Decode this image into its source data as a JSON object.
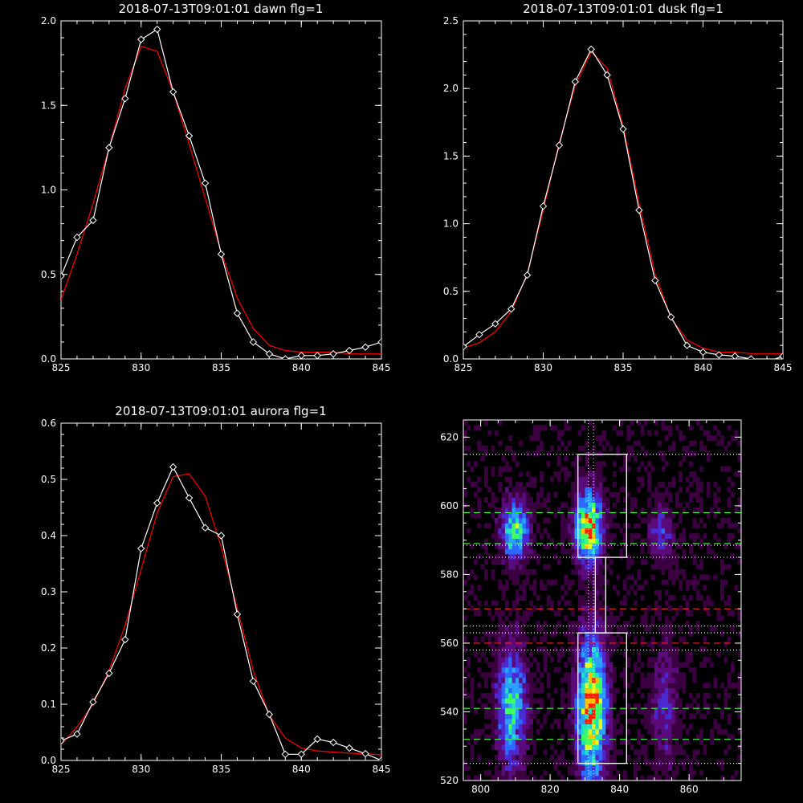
{
  "chart_data": [
    {
      "type": "line",
      "title": "2018-07-13T09:01:01 dawn flg=1",
      "xlim": [
        825,
        845
      ],
      "ylim": [
        0,
        2.0
      ],
      "xticks": [
        "825",
        "830",
        "835",
        "840",
        "845"
      ],
      "yticks": [
        "0.0",
        "0.5",
        "1.0",
        "1.5",
        "2.0"
      ],
      "series": [
        {
          "color": "#ffffff",
          "marker": "diamond",
          "x": [
            825,
            826,
            827,
            828,
            829,
            830,
            831,
            832,
            833,
            834,
            835,
            836,
            837,
            838,
            839,
            840,
            841,
            842,
            843,
            844,
            845
          ],
          "y": [
            0.49,
            0.72,
            0.82,
            1.25,
            1.54,
            1.89,
            1.95,
            1.58,
            1.32,
            1.04,
            0.62,
            0.27,
            0.1,
            0.03,
            0.0,
            0.02,
            0.02,
            0.03,
            0.05,
            0.07,
            0.1
          ]
        },
        {
          "color": "#ff0000",
          "marker": "none",
          "x": [
            825,
            826,
            827,
            828,
            829,
            830,
            831,
            832,
            833,
            834,
            835,
            836,
            837,
            838,
            839,
            840,
            841,
            842,
            843,
            844,
            845
          ],
          "y": [
            0.35,
            0.62,
            0.92,
            1.25,
            1.6,
            1.85,
            1.82,
            1.58,
            1.27,
            0.95,
            0.63,
            0.36,
            0.18,
            0.08,
            0.05,
            0.04,
            0.04,
            0.04,
            0.03,
            0.03,
            0.03
          ]
        }
      ]
    },
    {
      "type": "line",
      "title": "2018-07-13T09:01:01 dusk flg=1",
      "xlim": [
        825,
        845
      ],
      "ylim": [
        0,
        2.5
      ],
      "xticks": [
        "825",
        "830",
        "835",
        "840",
        "845"
      ],
      "yticks": [
        "0.0",
        "0.5",
        "1.0",
        "1.5",
        "2.0",
        "2.5"
      ],
      "series": [
        {
          "color": "#ffffff",
          "marker": "diamond",
          "x": [
            825,
            826,
            827,
            828,
            829,
            830,
            831,
            832,
            833,
            834,
            835,
            836,
            837,
            838,
            839,
            840,
            841,
            842,
            843,
            844,
            845
          ],
          "y": [
            0.09,
            0.18,
            0.26,
            0.37,
            0.62,
            1.13,
            1.58,
            2.05,
            2.29,
            2.1,
            1.7,
            1.1,
            0.58,
            0.31,
            0.1,
            0.05,
            0.03,
            0.02,
            0.0,
            -0.02,
            0.02
          ]
        },
        {
          "color": "#ff0000",
          "marker": "none",
          "x": [
            825,
            826,
            827,
            828,
            829,
            830,
            831,
            832,
            833,
            834,
            835,
            836,
            837,
            838,
            839,
            840,
            841,
            842,
            843,
            844,
            845
          ],
          "y": [
            0.08,
            0.12,
            0.2,
            0.35,
            0.63,
            1.1,
            1.6,
            2.02,
            2.27,
            2.15,
            1.72,
            1.15,
            0.63,
            0.3,
            0.14,
            0.08,
            0.05,
            0.05,
            0.04,
            0.04,
            0.04
          ]
        }
      ]
    },
    {
      "type": "line",
      "title": "2018-07-13T09:01:01 aurora flg=1",
      "xlim": [
        825,
        845
      ],
      "ylim": [
        0,
        0.6
      ],
      "xticks": [
        "825",
        "830",
        "835",
        "840",
        "845"
      ],
      "yticks": [
        "0.0",
        "0.1",
        "0.2",
        "0.3",
        "0.4",
        "0.5",
        "0.6"
      ],
      "series": [
        {
          "color": "#ffffff",
          "marker": "diamond",
          "x": [
            825,
            826,
            827,
            828,
            829,
            830,
            831,
            832,
            833,
            834,
            835,
            836,
            837,
            838,
            839,
            840,
            841,
            842,
            843,
            844,
            845
          ],
          "y": [
            0.035,
            0.047,
            0.104,
            0.155,
            0.215,
            0.377,
            0.458,
            0.522,
            0.467,
            0.414,
            0.4,
            0.26,
            0.141,
            0.082,
            0.011,
            0.011,
            0.038,
            0.032,
            0.022,
            0.012,
            0.0
          ]
        },
        {
          "color": "#ff0000",
          "marker": "none",
          "x": [
            825,
            826,
            827,
            828,
            829,
            830,
            831,
            832,
            833,
            834,
            835,
            836,
            837,
            838,
            839,
            840,
            841,
            842,
            843,
            844,
            845
          ],
          "y": [
            0.028,
            0.06,
            0.1,
            0.16,
            0.24,
            0.34,
            0.44,
            0.505,
            0.51,
            0.47,
            0.38,
            0.27,
            0.16,
            0.08,
            0.04,
            0.022,
            0.017,
            0.015,
            0.013,
            0.012,
            0.01
          ]
        }
      ]
    },
    {
      "type": "heatmap",
      "title": "",
      "xlim": [
        795,
        875
      ],
      "ylim": [
        520,
        625
      ],
      "xticks": [
        "800",
        "820",
        "840",
        "860"
      ],
      "yticks": [
        "520",
        "540",
        "560",
        "580",
        "600",
        "620"
      ],
      "colormap": [
        "#000000",
        "#3a0040",
        "#5a0a7a",
        "#4a2ad0",
        "#2a6aff",
        "#2aa0ff",
        "#20e0c0",
        "#40ff60",
        "#e0ff20",
        "#ffc000",
        "#ff2000"
      ],
      "blobs": [
        {
          "x": 810,
          "y": 593,
          "sx": 2.6,
          "sy": 6,
          "amp": 0.65
        },
        {
          "x": 809,
          "y": 542,
          "sx": 2.8,
          "sy": 12,
          "amp": 0.6
        },
        {
          "x": 831,
          "y": 594,
          "sx": 2.6,
          "sy": 7,
          "amp": 0.95
        },
        {
          "x": 832,
          "y": 541,
          "sx": 2.8,
          "sy": 14,
          "amp": 1.0
        },
        {
          "x": 852,
          "y": 592,
          "sx": 2.5,
          "sy": 6,
          "amp": 0.28
        },
        {
          "x": 853,
          "y": 542,
          "sx": 2.6,
          "sy": 12,
          "amp": 0.26
        }
      ],
      "boxes": [
        {
          "x0": 828,
          "x1": 842,
          "y0": 585,
          "y1": 615,
          "color": "#ffffff"
        },
        {
          "x0": 828,
          "x1": 842,
          "y0": 525,
          "y1": 563,
          "color": "#ffffff"
        },
        {
          "x0": 833,
          "x1": 836,
          "y0": 563,
          "y1": 585,
          "color": "#ffffff"
        }
      ],
      "vlines": [
        {
          "x": 831,
          "color": "#ffffff",
          "style": "dotted"
        },
        {
          "x": 832.5,
          "color": "#ffffff",
          "style": "dotted"
        }
      ],
      "hlines": [
        {
          "y": 615,
          "color": "#ffffff",
          "style": "dotted"
        },
        {
          "y": 598,
          "color": "#40ff40",
          "style": "dashed"
        },
        {
          "y": 589,
          "color": "#40ff40",
          "style": "dashed"
        },
        {
          "y": 588.5,
          "color": "#ffffff",
          "style": "dotted"
        },
        {
          "y": 585,
          "color": "#ffffff",
          "style": "dotted"
        },
        {
          "y": 570,
          "color": "#ff2020",
          "style": "dashed"
        },
        {
          "y": 565,
          "color": "#ffffff",
          "style": "dotted"
        },
        {
          "y": 563,
          "color": "#ffffff",
          "style": "dotted"
        },
        {
          "y": 560,
          "color": "#ff2020",
          "style": "dashed"
        },
        {
          "y": 558,
          "color": "#ffffff",
          "style": "dotted"
        },
        {
          "y": 541,
          "color": "#40ff40",
          "style": "dashed"
        },
        {
          "y": 532,
          "color": "#40ff40",
          "style": "dashed"
        },
        {
          "y": 525,
          "color": "#ffffff",
          "style": "dotted"
        }
      ]
    }
  ]
}
